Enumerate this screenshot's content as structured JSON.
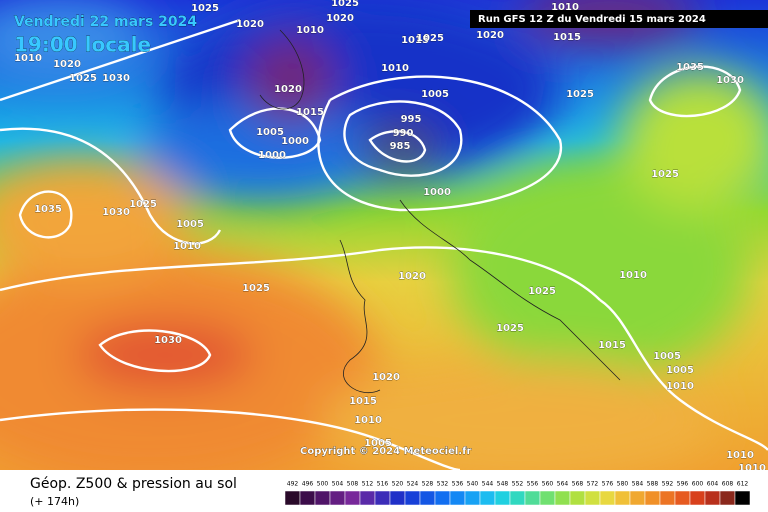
{
  "header": {
    "date": "Vendredi 22 mars 2024",
    "time": "19:00 locale",
    "run": "Run GFS 12 Z du Vendredi 15 mars 2024"
  },
  "isobar_labels": [
    "1025",
    "1020",
    "1020",
    "1025",
    "1010",
    "1015",
    "1025",
    "1020",
    "1015",
    "1010",
    "1010",
    "1020",
    "1025",
    "1030",
    "1010",
    "1020",
    "1005",
    "1015",
    "1025",
    "1035",
    "1030",
    "995",
    "990",
    "985",
    "1005",
    "1000",
    "1000",
    "1000",
    "1025",
    "1035",
    "1030",
    "1025",
    "1005",
    "1010",
    "1020",
    "1010",
    "1025",
    "1025",
    "1025",
    "1030",
    "1015",
    "1005",
    "1005",
    "1010",
    "1020",
    "1015",
    "1010",
    "1005",
    "1010",
    "1010"
  ],
  "copyright": "Copyright © 2024 Meteociel.fr",
  "legend": {
    "title": "Géop. Z500 & pression au sol",
    "subtitle": "(+ 174h)",
    "scale": [
      "492",
      "496",
      "500",
      "504",
      "508",
      "512",
      "516",
      "520",
      "524",
      "528",
      "532",
      "536",
      "540",
      "544",
      "548",
      "552",
      "556",
      "560",
      "564",
      "568",
      "572",
      "576",
      "580",
      "584",
      "588",
      "592",
      "596",
      "600",
      "604",
      "608",
      "612"
    ]
  }
}
